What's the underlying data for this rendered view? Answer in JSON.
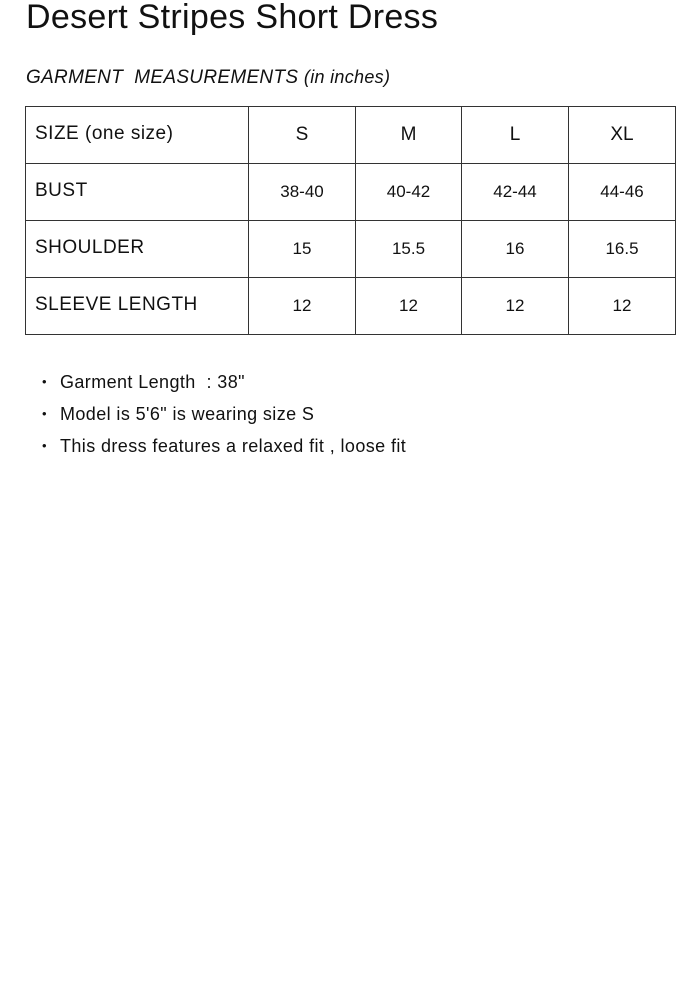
{
  "title": "Desert Stripes Short Dress",
  "subtitle": {
    "main": "GARMENT  MEASUREMENTS",
    "note": "(in inches)"
  },
  "table": {
    "header": {
      "label": "SIZE (one size)",
      "sizes": [
        "S",
        "M",
        "L",
        "XL"
      ]
    },
    "rows": [
      {
        "label": "BUST",
        "values": [
          "38-40",
          "40-42",
          "42-44",
          "44-46"
        ]
      },
      {
        "label": "SHOULDER",
        "values": [
          "15",
          "15.5",
          "16",
          "16.5"
        ]
      },
      {
        "label": "SLEEVE LENGTH",
        "values": [
          "12",
          "12",
          "12",
          "12"
        ]
      }
    ]
  },
  "notes": [
    "Garment Length  : 38\"",
    "Model is 5'6\" is wearing size S",
    "This dress features a relaxed fit , loose fit"
  ]
}
